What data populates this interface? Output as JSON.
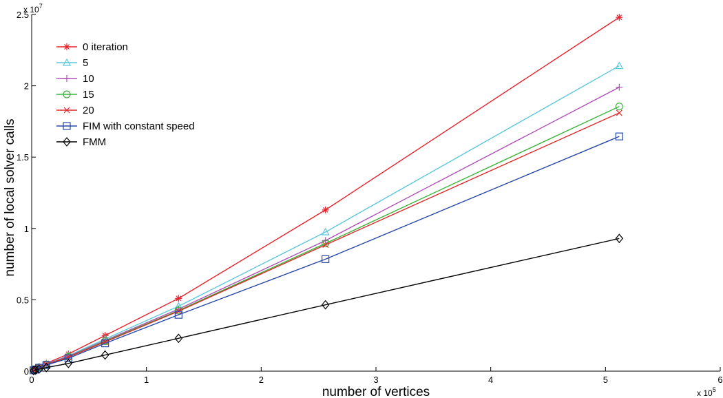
{
  "chart_data": {
    "type": "line",
    "title": "",
    "xlabel": "number of vertices",
    "ylabel": "number of local solver calls",
    "x_multiplier_label": "x 10",
    "x_multiplier_exp": "5",
    "y_multiplier_label": "x 10",
    "y_multiplier_exp": "7",
    "xlim": [
      0,
      6
    ],
    "ylim": [
      0,
      2.5
    ],
    "xticks": [
      "0",
      "1",
      "2",
      "3",
      "4",
      "5",
      "6"
    ],
    "yticks": [
      "0",
      "0.5",
      "1",
      "1.5",
      "2",
      "2.5"
    ],
    "grid": false,
    "legend_position": "top-left",
    "x": [
      0.016,
      0.032,
      0.064,
      0.128,
      0.32,
      0.64,
      1.28,
      2.56,
      5.12
    ],
    "series": [
      {
        "name": "0 iteration",
        "color": "#e8202a",
        "marker": "asterisk",
        "values": [
          0.008,
          0.016,
          0.032,
          0.055,
          0.12,
          0.25,
          0.51,
          1.13,
          2.48
        ]
      },
      {
        "name": "5",
        "color": "#5bc8dc",
        "marker": "triangle",
        "values": [
          0.007,
          0.014,
          0.028,
          0.05,
          0.108,
          0.225,
          0.455,
          0.975,
          2.14
        ]
      },
      {
        "name": "10",
        "color": "#b050b8",
        "marker": "plus",
        "values": [
          0.007,
          0.013,
          0.027,
          0.048,
          0.104,
          0.215,
          0.435,
          0.915,
          1.99
        ]
      },
      {
        "name": "15",
        "color": "#3cb43c",
        "marker": "circle",
        "values": [
          0.007,
          0.013,
          0.026,
          0.047,
          0.1,
          0.21,
          0.425,
          0.895,
          1.855
        ]
      },
      {
        "name": "20",
        "color": "#e02828",
        "marker": "x",
        "values": [
          0.007,
          0.013,
          0.026,
          0.046,
          0.098,
          0.205,
          0.42,
          0.885,
          1.81
        ]
      },
      {
        "name": "FIM with constant speed",
        "color": "#2848a8",
        "marker": "square",
        "values": [
          0.006,
          0.012,
          0.024,
          0.043,
          0.09,
          0.195,
          0.395,
          0.785,
          1.645
        ]
      },
      {
        "name": "FMM",
        "color": "#000000",
        "marker": "diamond",
        "values": [
          0.004,
          0.007,
          0.014,
          0.025,
          0.054,
          0.113,
          0.23,
          0.465,
          0.93
        ]
      }
    ]
  }
}
